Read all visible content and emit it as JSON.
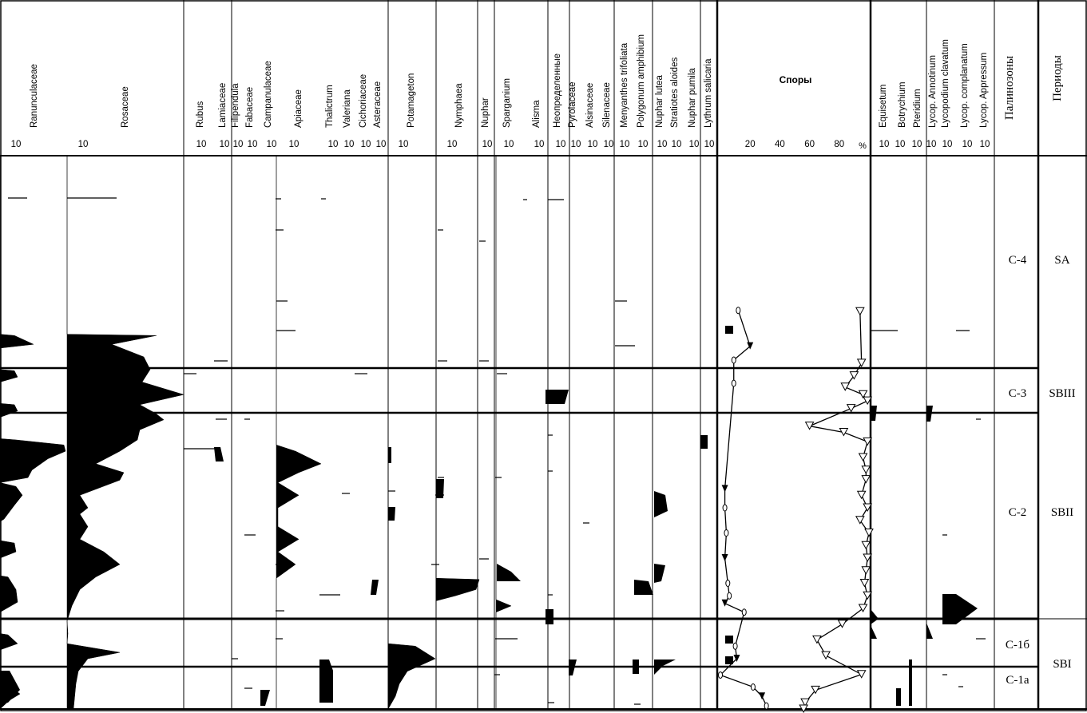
{
  "chart_data": {
    "type": "pollen-diagram",
    "taxa": [
      {
        "name": "Ranunculaceae",
        "scale": "10",
        "profile": [
          [
            0,
            0
          ],
          [
            236,
            0
          ],
          [
            244,
            0
          ],
          [
            252,
            0
          ],
          [
            284,
            0
          ],
          [
            286,
            18
          ],
          [
            300,
            42
          ],
          [
            306,
            0
          ],
          [
            340,
            0
          ],
          [
            342,
            18
          ],
          [
            352,
            22
          ],
          [
            360,
            0
          ],
          [
            394,
            0
          ],
          [
            396,
            18
          ],
          [
            406,
            22
          ],
          [
            416,
            0
          ],
          [
            450,
            0
          ],
          [
            452,
            20
          ],
          [
            460,
            80
          ],
          [
            470,
            82
          ],
          [
            482,
            60
          ],
          [
            500,
            40
          ],
          [
            512,
            35
          ],
          [
            520,
            0
          ],
          [
            526,
            20
          ],
          [
            540,
            28
          ],
          [
            556,
            18
          ],
          [
            578,
            5
          ],
          [
            582,
            0
          ],
          [
            612,
            0
          ],
          [
            616,
            18
          ],
          [
            630,
            20
          ],
          [
            640,
            0
          ],
          [
            668,
            0
          ],
          [
            670,
            10
          ],
          [
            690,
            20
          ],
          [
            710,
            22
          ],
          [
            726,
            0
          ],
          [
            760,
            0
          ],
          [
            762,
            10
          ],
          [
            776,
            22
          ],
          [
            786,
            0
          ],
          [
            840,
            0
          ],
          [
            842,
            10
          ],
          [
            856,
            25
          ],
          [
            866,
            12
          ],
          [
            880,
            0
          ]
        ]
      },
      {
        "name": "Rosaceae",
        "scale": "10",
        "profile": [
          [
            0,
            84
          ],
          [
            284,
            84
          ],
          [
            286,
            196
          ],
          [
            300,
            140
          ],
          [
            320,
            180
          ],
          [
            340,
            188
          ],
          [
            360,
            178
          ],
          [
            380,
            230
          ],
          [
            396,
            175
          ],
          [
            410,
            195
          ],
          [
            420,
            205
          ],
          [
            436,
            175
          ],
          [
            452,
            172
          ],
          [
            470,
            150
          ],
          [
            490,
            120
          ],
          [
            504,
            155
          ],
          [
            516,
            150
          ],
          [
            540,
            100
          ],
          [
            560,
            110
          ],
          [
            570,
            100
          ],
          [
            590,
            110
          ],
          [
            610,
            100
          ],
          [
            630,
            130
          ],
          [
            650,
            150
          ],
          [
            670,
            120
          ],
          [
            690,
            100
          ],
          [
            716,
            90
          ],
          [
            740,
            84
          ],
          [
            760,
            85
          ],
          [
            776,
            84
          ],
          [
            790,
            150
          ],
          [
            800,
            110
          ],
          [
            820,
            98
          ],
          [
            840,
            95
          ],
          [
            880,
            92
          ]
        ]
      },
      {
        "name": "Rubus",
        "scale": "10"
      },
      {
        "name": "Lamiaceae",
        "scale": "10"
      },
      {
        "name": "Filipendula",
        "scale": "10"
      },
      {
        "name": "Fabaceae",
        "scale": "10"
      },
      {
        "name": "Campanulaceae",
        "scale": "10"
      },
      {
        "name": "Apiaceae",
        "scale": "10",
        "profile": [
          [
            0,
            346
          ],
          [
            460,
            346
          ],
          [
            470,
            370
          ],
          [
            490,
            402
          ],
          [
            504,
            374
          ],
          [
            520,
            348
          ],
          [
            540,
            374
          ],
          [
            560,
            348
          ],
          [
            590,
            348
          ],
          [
            610,
            374
          ],
          [
            630,
            348
          ],
          [
            650,
            370
          ],
          [
            672,
            346
          ]
        ]
      },
      {
        "name": "Thalictrum",
        "scale": "10"
      },
      {
        "name": "Valeriana",
        "scale": "10"
      },
      {
        "name": "Cichoriaceae",
        "scale": "10"
      },
      {
        "name": "Asteraceae",
        "scale": "10"
      },
      {
        "name": "Potamageton",
        "scale": "10",
        "profile": [
          [
            0,
            486
          ],
          [
            776,
            486
          ],
          [
            780,
            520
          ],
          [
            800,
            545
          ],
          [
            820,
            510
          ],
          [
            840,
            500
          ],
          [
            860,
            495
          ],
          [
            880,
            486
          ]
        ]
      },
      {
        "name": "Nymphaea",
        "scale": "10",
        "profile": [
          [
            0,
            546
          ],
          [
            672,
            546
          ],
          [
            674,
            600
          ],
          [
            690,
            596
          ],
          [
            700,
            570
          ],
          [
            708,
            546
          ]
        ]
      },
      {
        "name": "Nuphar",
        "scale": "10"
      },
      {
        "name": "Sparganium",
        "scale": "10",
        "profile": [
          [
            0,
            621
          ],
          [
            706,
            621
          ],
          [
            716,
            640
          ],
          [
            726,
            621
          ]
        ]
      },
      {
        "name": "Alisma",
        "scale": "10"
      },
      {
        "name": "Неопределенные",
        "scale": "10"
      },
      {
        "name": "Pyrolaceae",
        "scale": "10"
      },
      {
        "name": "Alsinaceae",
        "scale": "10"
      },
      {
        "name": "Silenaceae",
        "scale": "10"
      },
      {
        "name": "Menyanthes trifoliata",
        "scale": "10"
      },
      {
        "name": "Polygonum amphibium",
        "scale": "10"
      },
      {
        "name": "Nuphar lutea",
        "scale": "10"
      },
      {
        "name": "Stratiotes aloides",
        "scale": "10"
      },
      {
        "name": "Nuphar pumila",
        "scale": "10"
      },
      {
        "name": "Lythrum salicaria",
        "scale": "10"
      },
      {
        "name": "Equisetum",
        "scale": "10"
      },
      {
        "name": "Botrychium",
        "scale": "10"
      },
      {
        "name": "Pteridium",
        "scale": "10"
      },
      {
        "name": "Lycop. Annotinum",
        "scale": "10"
      },
      {
        "name": "Lycopodium clavatum",
        "scale": "10"
      },
      {
        "name": "Lycop. complanatum",
        "scale": "10"
      },
      {
        "name": "Lycop. Appressum",
        "scale": "10"
      }
    ],
    "spores": {
      "title": "Споры",
      "ticks": [
        "20",
        "40",
        "60",
        "80"
      ],
      "unit": "%",
      "series_a": [
        [
          248,
          94
        ],
        [
          330,
          95
        ],
        [
          350,
          90
        ],
        [
          368,
          84
        ],
        [
          380,
          96
        ],
        [
          390,
          99
        ],
        [
          402,
          88
        ],
        [
          430,
          60
        ],
        [
          440,
          83
        ],
        [
          455,
          99
        ],
        [
          480,
          96
        ],
        [
          500,
          98
        ],
        [
          515,
          98
        ],
        [
          540,
          95
        ],
        [
          560,
          99
        ],
        [
          580,
          94
        ],
        [
          600,
          100
        ],
        [
          620,
          98
        ],
        [
          640,
          99
        ],
        [
          660,
          98
        ],
        [
          680,
          97
        ],
        [
          700,
          99
        ],
        [
          720,
          96
        ],
        [
          745,
          82
        ],
        [
          770,
          65
        ],
        [
          795,
          71
        ],
        [
          825,
          95
        ],
        [
          850,
          64
        ],
        [
          870,
          57
        ],
        [
          880,
          56
        ]
      ],
      "series_b": [
        [
          246,
          12
        ],
        [
          303,
          20
        ],
        [
          325,
          9
        ],
        [
          362,
          9
        ],
        [
          530,
          3
        ],
        [
          560,
          3
        ],
        [
          600,
          4
        ],
        [
          640,
          3
        ],
        [
          680,
          5
        ],
        [
          700,
          6
        ],
        [
          712,
          3
        ],
        [
          726,
          16
        ],
        [
          780,
          10
        ],
        [
          800,
          11
        ],
        [
          826,
          0
        ],
        [
          845,
          22
        ],
        [
          860,
          28
        ],
        [
          875,
          31
        ]
      ]
    },
    "zones": [
      "С-4",
      "С-3",
      "С-2",
      "С-1б",
      "С-1a"
    ],
    "periods": [
      "SA",
      "SBIII",
      "SBII",
      "SBI"
    ],
    "zones_title": "Палинозоны",
    "periods_title": "Периоды"
  }
}
